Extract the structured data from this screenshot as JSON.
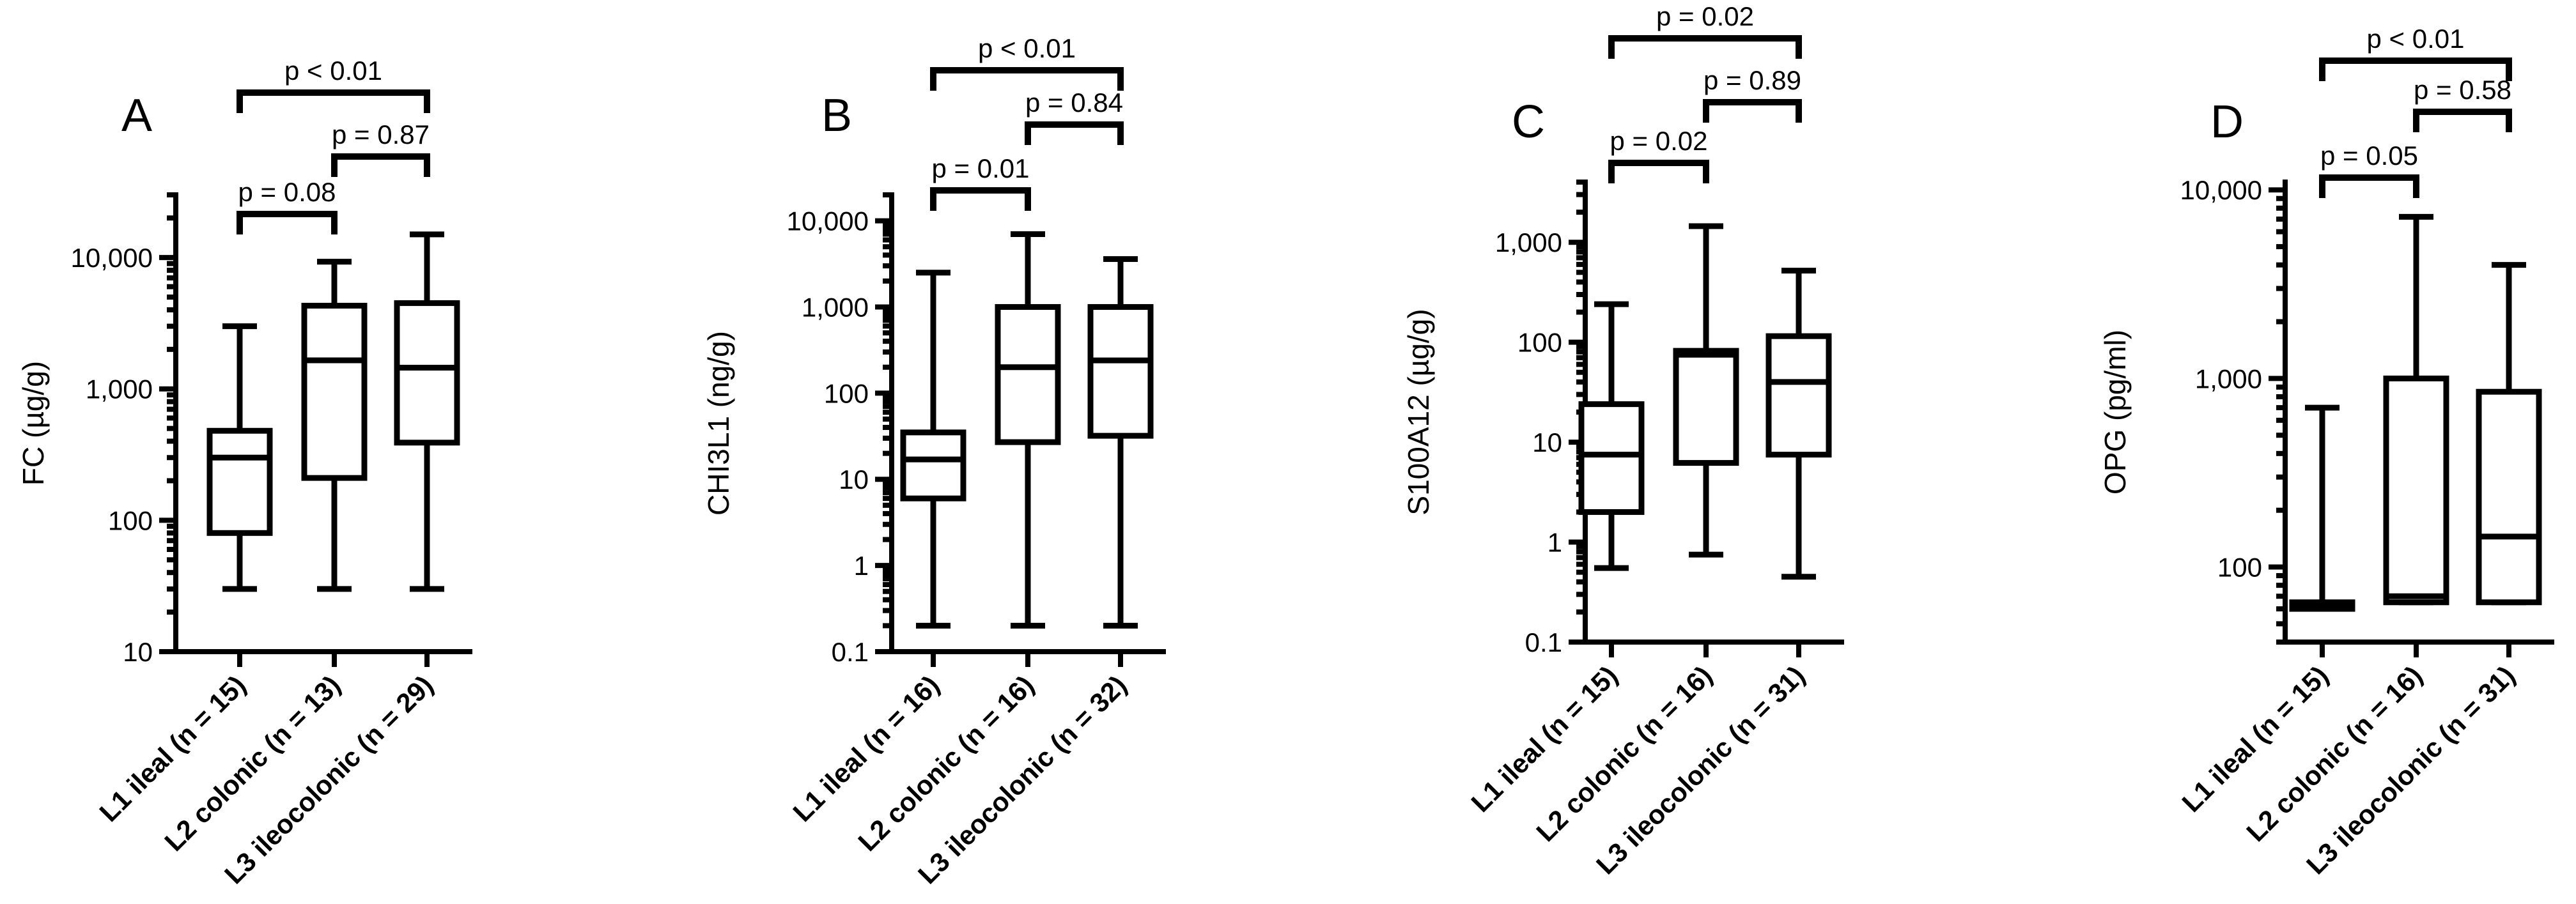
{
  "chart_data": [
    {
      "type": "boxplot",
      "panel_label": "A",
      "ylabel": "FC (µg/g)",
      "yscale": "log",
      "ylim": [
        10,
        30000
      ],
      "yticks": [
        10,
        100,
        1000,
        10000
      ],
      "ytick_labels": [
        "10",
        "100",
        "1,000",
        "10,000"
      ],
      "categories": [
        "L1 ileal (n = 15)",
        "L2 colonic (n = 13)",
        "L3 ileocolonic (n = 29)"
      ],
      "boxes": [
        {
          "min": 30,
          "q1": 80,
          "median": 300,
          "q3": 480,
          "max": 3000
        },
        {
          "min": 30,
          "q1": 210,
          "median": 1650,
          "q3": 4300,
          "max": 9300
        },
        {
          "min": 30,
          "q1": 390,
          "median": 1450,
          "q3": 4500,
          "max": 15000
        }
      ],
      "comparisons": [
        {
          "a": 0,
          "b": 1,
          "label": "p = 0.08",
          "level": 0
        },
        {
          "a": 1,
          "b": 2,
          "label": "p = 0.87",
          "level": 1
        },
        {
          "a": 0,
          "b": 2,
          "label": "p < 0.01",
          "level": 2
        }
      ]
    },
    {
      "type": "boxplot",
      "panel_label": "B",
      "ylabel": "CHI3L1 (ng/g)",
      "yscale": "log",
      "ylim": [
        0.1,
        20000
      ],
      "yticks": [
        0.1,
        1,
        10,
        100,
        1000,
        10000
      ],
      "ytick_labels": [
        "0.1",
        "1",
        "10",
        "100",
        "1,000",
        "10,000"
      ],
      "categories": [
        "L1 ileal (n = 16)",
        "L2 colonic (n = 16)",
        "L3 ileocolonic (n = 32)"
      ],
      "boxes": [
        {
          "min": 0.2,
          "q1": 6,
          "median": 17,
          "q3": 35,
          "max": 2500
        },
        {
          "min": 0.2,
          "q1": 27,
          "median": 200,
          "q3": 1000,
          "max": 7000
        },
        {
          "min": 0.2,
          "q1": 32,
          "median": 240,
          "q3": 1000,
          "max": 3600
        }
      ],
      "comparisons": [
        {
          "a": 0,
          "b": 1,
          "label": "p = 0.01",
          "level": 0
        },
        {
          "a": 1,
          "b": 2,
          "label": "p = 0.84",
          "level": 1
        },
        {
          "a": 0,
          "b": 2,
          "label": "p < 0.01",
          "level": 2
        }
      ]
    },
    {
      "type": "boxplot",
      "panel_label": "C",
      "ylabel": "S100A12 (µg/g)",
      "yscale": "log",
      "ylim": [
        0.1,
        4000
      ],
      "yticks": [
        0.1,
        1,
        10,
        100,
        1000
      ],
      "ytick_labels": [
        "0.1",
        "1",
        "10",
        "100",
        "1,000"
      ],
      "categories": [
        "L1 ileal (n = 15)",
        "L2 colonic (n = 16)",
        "L3 ileocolonic (n = 31)"
      ],
      "boxes": [
        {
          "min": 0.55,
          "q1": 2,
          "median": 7.5,
          "q3": 24,
          "max": 240
        },
        {
          "min": 0.75,
          "q1": 6.2,
          "median": 75,
          "q3": 82,
          "max": 1450
        },
        {
          "min": 0.45,
          "q1": 7.5,
          "median": 40,
          "q3": 115,
          "max": 520
        }
      ],
      "comparisons": [
        {
          "a": 0,
          "b": 1,
          "label": "p = 0.02",
          "level": 0
        },
        {
          "a": 1,
          "b": 2,
          "label": "p = 0.89",
          "level": 1
        },
        {
          "a": 0,
          "b": 2,
          "label": "p = 0.02",
          "level": 2
        }
      ]
    },
    {
      "type": "boxplot",
      "panel_label": "D",
      "ylabel": "OPG (pg/ml)",
      "yscale": "log",
      "ylim": [
        40,
        11000
      ],
      "yticks": [
        100,
        1000,
        10000
      ],
      "ytick_labels": [
        "100",
        "1,000",
        "10,000"
      ],
      "categories": [
        "L1 ileal (n = 15)",
        "L2 colonic (n = 16)",
        "L3 ileocolonic (n = 31)"
      ],
      "boxes": [
        {
          "min": 60,
          "q1": 60,
          "median": 62,
          "q3": 65,
          "max": 700
        },
        {
          "min": 65,
          "q1": 65,
          "median": 70,
          "q3": 1000,
          "max": 7200
        },
        {
          "min": 65,
          "q1": 65,
          "median": 145,
          "q3": 850,
          "max": 4000
        }
      ],
      "comparisons": [
        {
          "a": 0,
          "b": 1,
          "label": "p = 0.05",
          "level": 0
        },
        {
          "a": 1,
          "b": 2,
          "label": "p = 0.58",
          "level": 1
        },
        {
          "a": 0,
          "b": 2,
          "label": "p < 0.01",
          "level": 2
        }
      ]
    }
  ]
}
